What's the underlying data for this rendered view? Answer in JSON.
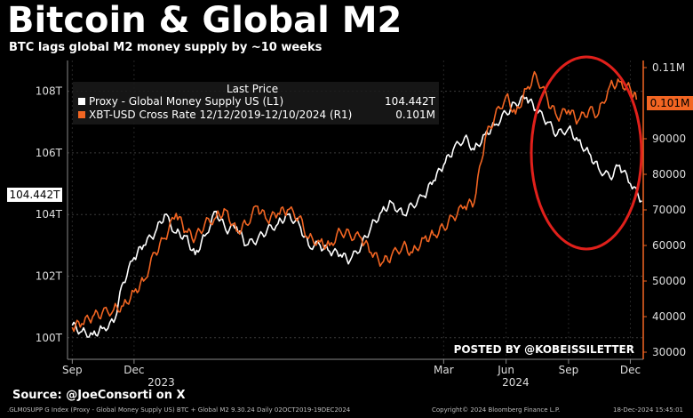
{
  "header": {
    "title": "Bitcoin & Global M2",
    "subtitle": "BTC lags global M2 money supply by ~10 weeks"
  },
  "source": "Source: @JoeConsorti on X",
  "footer": {
    "left": ".GLM0SUPP G Index (Proxy - Global Money Supply US) BTC + Global M2 9.30.24  Daily 02OCT2019-19DEC2024",
    "center": "Copyright© 2024 Bloomberg Finance L.P.",
    "right": "18-Dec-2024 15:45:01"
  },
  "watermark": "POSTED BY @KOBEISSILETTER",
  "colors": {
    "background": "#000000",
    "m2_series": "#ffffff",
    "btc_series": "#f26522",
    "right_axis": "#f26522",
    "highlight_circle": "#e0201b"
  },
  "chart_data": {
    "type": "line",
    "legend": {
      "title": "Last Price",
      "placement": "top-left",
      "entries": [
        {
          "label": "Proxy - Global Money Supply US  (L1)",
          "value": "104.442T"
        },
        {
          "label": "XBT-USD Cross Rate 12/12/2019-12/10/2024  (R1)",
          "value": "0.101M"
        }
      ]
    },
    "last_value_tags": {
      "left": "104.442T",
      "right": "0.101M"
    },
    "x_axis": {
      "month_ticks": [
        "Sep",
        "Dec",
        "Mar",
        "Jun",
        "Sep",
        "Dec"
      ],
      "year_labels": [
        "2023",
        "2024"
      ],
      "range": [
        "2022-08-25",
        "2024-12-20"
      ]
    },
    "y_left": {
      "unit": "T",
      "range": [
        99.3,
        109
      ],
      "ticks": [
        "100T",
        "102T",
        "104T",
        "106T",
        "108T"
      ]
    },
    "y_right": {
      "range": [
        28000,
        112000
      ],
      "ticks": [
        "30000",
        "40000",
        "50000",
        "60000",
        "70000",
        "80000",
        "90000",
        "0.11M"
      ]
    },
    "series": [
      {
        "name": "Proxy - Global Money Supply US  (L1)",
        "axis": "left",
        "x": [
          "2022-09-01",
          "2022-09-15",
          "2022-10-01",
          "2022-10-15",
          "2022-11-01",
          "2022-11-15",
          "2022-12-01",
          "2022-12-15",
          "2023-01-01",
          "2023-01-15",
          "2023-02-01",
          "2023-02-15",
          "2023-03-01",
          "2023-03-15",
          "2023-04-01",
          "2023-04-15",
          "2023-05-01",
          "2023-05-15",
          "2023-06-01",
          "2023-06-15",
          "2023-07-01",
          "2023-07-15",
          "2023-08-01",
          "2023-08-15",
          "2023-09-01",
          "2023-09-15",
          "2023-10-01",
          "2023-10-15",
          "2023-11-01",
          "2023-11-15",
          "2023-12-01",
          "2023-12-15",
          "2024-01-01",
          "2024-01-15",
          "2024-02-01",
          "2024-02-15",
          "2024-03-01",
          "2024-03-15",
          "2024-04-01",
          "2024-04-15",
          "2024-05-01",
          "2024-05-15",
          "2024-06-01",
          "2024-06-15",
          "2024-07-01",
          "2024-07-15",
          "2024-08-01",
          "2024-08-15",
          "2024-09-01",
          "2024-09-15",
          "2024-10-01",
          "2024-10-15",
          "2024-11-01",
          "2024-11-15",
          "2024-12-01",
          "2024-12-18"
        ],
        "values": [
          100.4,
          100.2,
          100.1,
          100.3,
          100.5,
          101.8,
          102.6,
          103.0,
          103.4,
          104.0,
          103.4,
          103.3,
          102.7,
          103.3,
          104.1,
          103.5,
          103.6,
          103.0,
          103.2,
          103.5,
          103.7,
          104.0,
          103.7,
          103.0,
          103.0,
          102.8,
          102.7,
          102.5,
          103.0,
          103.6,
          104.1,
          104.4,
          104.0,
          104.3,
          104.6,
          105.1,
          105.6,
          106.1,
          106.5,
          106.1,
          106.6,
          106.9,
          107.3,
          107.6,
          107.8,
          107.4,
          107.0,
          106.6,
          106.8,
          106.4,
          106.0,
          105.5,
          105.2,
          105.6,
          105.0,
          104.442
        ]
      },
      {
        "name": "XBT-USD Cross Rate 12/12/2019-12/10/2024  (R1)",
        "axis": "right",
        "x": [
          "2022-09-01",
          "2022-09-15",
          "2022-10-01",
          "2022-10-15",
          "2022-11-01",
          "2022-11-15",
          "2022-12-01",
          "2022-12-15",
          "2023-01-01",
          "2023-01-15",
          "2023-02-01",
          "2023-02-15",
          "2023-03-01",
          "2023-03-15",
          "2023-04-01",
          "2023-04-15",
          "2023-05-01",
          "2023-05-15",
          "2023-06-01",
          "2023-06-15",
          "2023-07-01",
          "2023-07-15",
          "2023-08-01",
          "2023-08-15",
          "2023-09-01",
          "2023-09-15",
          "2023-10-01",
          "2023-10-15",
          "2023-11-01",
          "2023-11-15",
          "2023-12-01",
          "2023-12-15",
          "2024-01-01",
          "2024-01-15",
          "2024-02-01",
          "2024-02-15",
          "2024-03-01",
          "2024-03-15",
          "2024-04-01",
          "2024-04-15",
          "2024-05-01",
          "2024-05-15",
          "2024-06-01",
          "2024-06-15",
          "2024-07-01",
          "2024-07-15",
          "2024-08-01",
          "2024-08-15",
          "2024-09-01",
          "2024-09-15",
          "2024-10-01",
          "2024-10-15",
          "2024-11-01",
          "2024-11-15",
          "2024-12-01",
          "2024-12-10"
        ],
        "values": [
          37000,
          38000,
          40000,
          41000,
          42000,
          43000,
          47000,
          50000,
          58000,
          62000,
          69000,
          64000,
          62000,
          66000,
          68000,
          70000,
          64000,
          66000,
          71000,
          67000,
          69000,
          70000,
          68000,
          62000,
          61000,
          60000,
          64000,
          63000,
          62000,
          58000,
          55000,
          57000,
          60000,
          58000,
          62000,
          63000,
          65000,
          68000,
          71000,
          72000,
          90000,
          96000,
          102000,
          97000,
          104000,
          108000,
          101000,
          96000,
          98000,
          95000,
          98000,
          97000,
          105000,
          106000,
          104000,
          101000
        ]
      }
    ]
  }
}
